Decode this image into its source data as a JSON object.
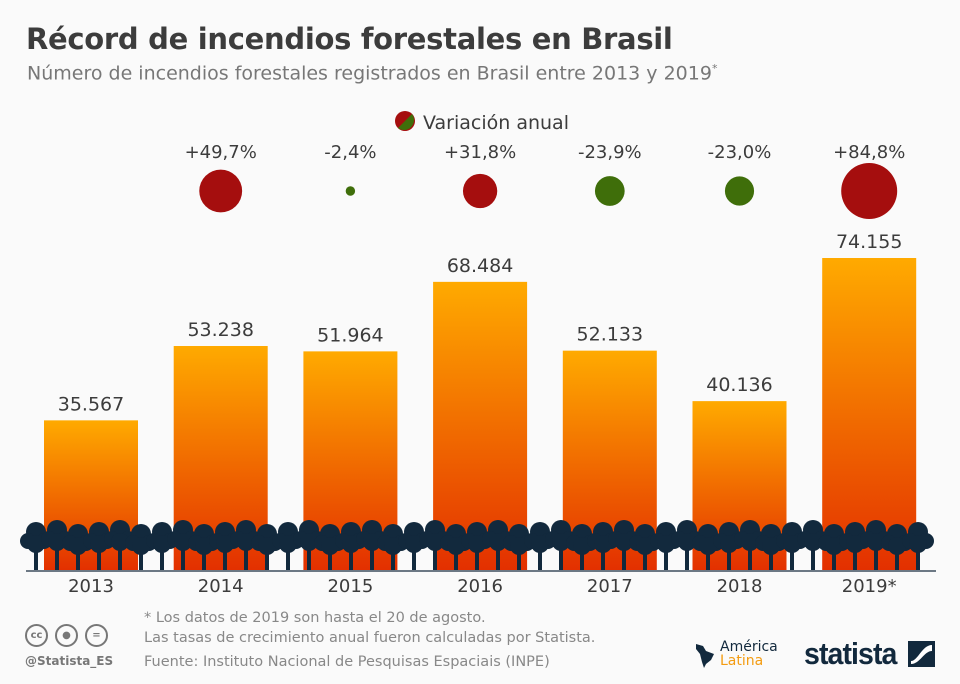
{
  "title": "Récord de incendios forestales en Brasil",
  "subtitle": "Número de incendios forestales registrados en Brasil entre 2013 y 2019",
  "subtitle_mark": "*",
  "chart_data": {
    "type": "bar",
    "categories": [
      "2013",
      "2014",
      "2015",
      "2016",
      "2017",
      "2018",
      "2019*"
    ],
    "values": [
      35567,
      53238,
      51964,
      68484,
      52133,
      40136,
      74155
    ],
    "value_labels": [
      "35.567",
      "53.238",
      "51.964",
      "68.484",
      "52.133",
      "40.136",
      "74.155"
    ],
    "ylim": [
      0,
      74155
    ],
    "bar_gradient": [
      "#ffaa00",
      "#e33000"
    ],
    "bubbles": {
      "legend": "Variación anual",
      "values": [
        49.7,
        -2.4,
        31.8,
        -23.9,
        -23.0,
        84.8
      ],
      "labels": [
        "+49,7%",
        "-2,4%",
        "+31,8%",
        "-23,9%",
        "-23,0%",
        "+84,8%"
      ],
      "positive_color": "#a50e0e",
      "negative_color": "#3f6e0a"
    }
  },
  "notes": {
    "line1": "* Los datos de 2019 son hasta el 20 de agosto.",
    "line2": "Las tasas de crecimiento anual fueron calculadas por Statista.",
    "source": "Fuente: Instituto Nacional de Pesquisas Espaciais (INPE)"
  },
  "footer": {
    "handle": "@Statista_ES",
    "cc_icons": [
      "cc-icon",
      "by-icon",
      "nd-icon"
    ],
    "cc": "cc",
    "partner_line1": "América",
    "partner_line2": "Latina",
    "brand": "statista"
  }
}
